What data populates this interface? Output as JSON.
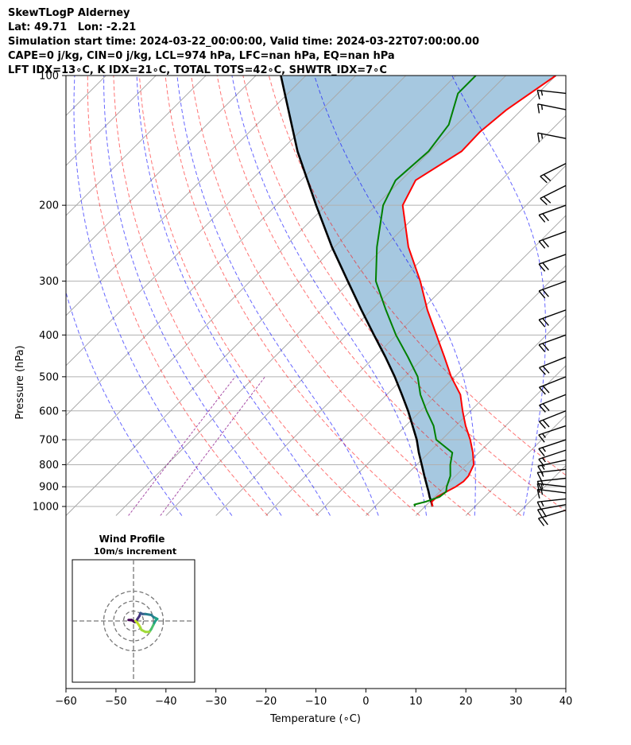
{
  "header": {
    "lines": [
      "SkewTLogP Alderney",
      "Lat: 49.71   Lon: -2.21",
      "Simulation start time: 2024-03-22_00:00:00, Valid time: 2024-03-22T07:00:00.00",
      "CAPE=0 j/kg, CIN=0 j/kg, LCL=974 hPa, LFC=nan hPa, EQ=nan hPa",
      "LFT IDX=13∘C, K IDX=21∘C, TOTAL TOTS=42∘C, SHWTR_IDX=7∘C"
    ]
  },
  "chart_data": {
    "type": "line",
    "subtype": "skew-T log-P diagram",
    "xlabel": "Temperature (∘C)",
    "ylabel": "Pressure (hPa)",
    "xlim": [
      -60,
      40
    ],
    "ylim": [
      1050,
      100
    ],
    "y_scale": "log",
    "x_ticks": [
      "−60",
      "−50",
      "−40",
      "−30",
      "−20",
      "−10",
      "0",
      "10",
      "20",
      "30",
      "40"
    ],
    "y_ticks": [
      "100",
      "200",
      "300",
      "400",
      "500",
      "600",
      "700",
      "800",
      "900",
      "1000"
    ],
    "grid": true,
    "series": [
      {
        "role": "temperature",
        "color": "#ff0000",
        "points": [
          [
            1000,
            11.5
          ],
          [
            975,
            10.4
          ],
          [
            950,
            10.5
          ],
          [
            925,
            11.3
          ],
          [
            900,
            12.2
          ],
          [
            875,
            12.7
          ],
          [
            850,
            12.6
          ],
          [
            800,
            11.4
          ],
          [
            750,
            8.8
          ],
          [
            700,
            5.7
          ],
          [
            650,
            2.0
          ],
          [
            600,
            -1.6
          ],
          [
            550,
            -5.3
          ],
          [
            500,
            -10.7
          ],
          [
            450,
            -16.0
          ],
          [
            400,
            -22.0
          ],
          [
            350,
            -28.8
          ],
          [
            300,
            -36.0
          ],
          [
            250,
            -45.2
          ],
          [
            200,
            -54.7
          ],
          [
            175,
            -57.1
          ],
          [
            150,
            -53.7
          ],
          [
            135,
            -53.9
          ],
          [
            120,
            -53.0
          ],
          [
            100,
            -50.0
          ]
        ]
      },
      {
        "role": "dewpoint",
        "color": "#008000",
        "points": [
          [
            1000,
            8.0
          ],
          [
            990,
            7.5
          ],
          [
            975,
            9.2
          ],
          [
            950,
            11.0
          ],
          [
            925,
            11.3
          ],
          [
            900,
            10.4
          ],
          [
            850,
            9.0
          ],
          [
            800,
            6.7
          ],
          [
            750,
            4.7
          ],
          [
            700,
            -1.1
          ],
          [
            650,
            -4.4
          ],
          [
            600,
            -8.8
          ],
          [
            550,
            -13.3
          ],
          [
            500,
            -17.4
          ],
          [
            450,
            -23.3
          ],
          [
            400,
            -30.1
          ],
          [
            350,
            -37.1
          ],
          [
            300,
            -44.9
          ],
          [
            250,
            -51.5
          ],
          [
            200,
            -58.6
          ],
          [
            175,
            -61.1
          ],
          [
            150,
            -60.3
          ],
          [
            130,
            -61.6
          ],
          [
            110,
            -66.0
          ],
          [
            100,
            -66.0
          ]
        ]
      },
      {
        "role": "parcel profile",
        "color": "#000000",
        "points": [
          [
            1000,
            11.5
          ],
          [
            975,
            10.3
          ],
          [
            950,
            9.0
          ],
          [
            925,
            7.8
          ],
          [
            900,
            6.5
          ],
          [
            850,
            3.8
          ],
          [
            800,
            1.0
          ],
          [
            750,
            -2.0
          ],
          [
            700,
            -5.0
          ],
          [
            650,
            -8.6
          ],
          [
            600,
            -12.5
          ],
          [
            550,
            -17.0
          ],
          [
            500,
            -22.0
          ],
          [
            450,
            -27.8
          ],
          [
            400,
            -34.5
          ],
          [
            350,
            -42.0
          ],
          [
            300,
            -50.5
          ],
          [
            250,
            -60.5
          ],
          [
            200,
            -72.0
          ],
          [
            150,
            -86.5
          ],
          [
            100,
            -105.0
          ]
        ]
      }
    ],
    "shaded_area": {
      "label": "",
      "color": "#a6c8e0",
      "between": [
        "temperature",
        "parcel profile"
      ]
    },
    "reference_lines": {
      "dry_adiabats": {
        "color": "#ff0000",
        "style": "dashed",
        "theta_k": [
          250,
          260,
          270,
          280,
          290,
          300,
          310,
          320
        ]
      },
      "moist_adiabats": {
        "color": "#0000ff",
        "style": "dashed",
        "start_temp_c": [
          -40,
          -30,
          -20,
          -10,
          0,
          10,
          20,
          30,
          40
        ]
      },
      "mixing_ratio_lines": {
        "color": "#800080",
        "style": "dashed",
        "g_per_kg": [
          0.05,
          0.1
        ]
      },
      "isotherms": {
        "color": "#999999",
        "style": "solid",
        "spacing_c": 10
      }
    },
    "wind_barbs": [
      {
        "p": 1020,
        "u": 10,
        "v": 3
      },
      {
        "p": 990,
        "u": 11,
        "v": 2
      },
      {
        "p": 960,
        "u": 9,
        "v": 1
      },
      {
        "p": 930,
        "u": 8,
        "v": -1
      },
      {
        "p": 900,
        "u": 9,
        "v": -1
      },
      {
        "p": 860,
        "u": 9,
        "v": 1
      },
      {
        "p": 820,
        "u": 9,
        "v": 1
      },
      {
        "p": 780,
        "u": 9,
        "v": 2
      },
      {
        "p": 740,
        "u": 9,
        "v": 3
      },
      {
        "p": 700,
        "u": 9,
        "v": 3
      },
      {
        "p": 650,
        "u": 9,
        "v": 3
      },
      {
        "p": 600,
        "u": 10,
        "v": 4
      },
      {
        "p": 550,
        "u": 10,
        "v": 4
      },
      {
        "p": 500,
        "u": 10,
        "v": 4
      },
      {
        "p": 450,
        "u": 10,
        "v": 4
      },
      {
        "p": 400,
        "u": 11,
        "v": 4
      },
      {
        "p": 350,
        "u": 11,
        "v": 4
      },
      {
        "p": 300,
        "u": 11,
        "v": 4
      },
      {
        "p": 260,
        "u": 11,
        "v": 4
      },
      {
        "p": 230,
        "u": 11,
        "v": 4
      },
      {
        "p": 200,
        "u": 11,
        "v": 4
      },
      {
        "p": 180,
        "u": 10,
        "v": 5
      },
      {
        "p": 160,
        "u": 10,
        "v": 5
      },
      {
        "p": 140,
        "u": 10,
        "v": -2
      },
      {
        "p": 120,
        "u": 10,
        "v": -2
      },
      {
        "p": 110,
        "u": 9,
        "v": -1
      }
    ],
    "inset": {
      "title": "Wind Profile",
      "subtitle": "10m/s increment",
      "rings_m_per_s": [
        10,
        20,
        30
      ],
      "hodograph": [
        [
          -5,
          1
        ],
        [
          -2,
          1
        ],
        [
          1,
          -1
        ],
        [
          2,
          -1
        ],
        [
          4,
          2
        ],
        [
          6,
          5
        ],
        [
          7,
          8
        ],
        [
          9,
          7
        ],
        [
          12,
          7
        ],
        [
          18,
          6
        ],
        [
          20,
          4
        ],
        [
          22,
          3
        ],
        [
          24,
          2
        ],
        [
          22,
          0
        ],
        [
          20,
          -4
        ],
        [
          18,
          -8
        ],
        [
          16,
          -11
        ],
        [
          12,
          -11
        ],
        [
          8,
          -9
        ],
        [
          6,
          -5
        ],
        [
          4,
          -2
        ],
        [
          2,
          0
        ]
      ]
    }
  }
}
